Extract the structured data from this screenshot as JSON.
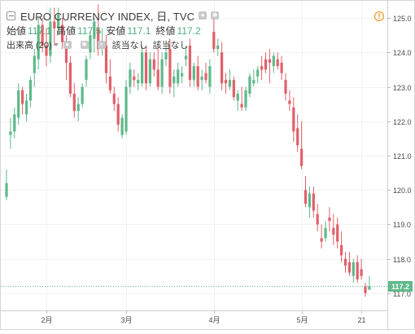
{
  "chart_data": {
    "type": "candlestick",
    "title": "EURO CURRENCY INDEX, 日, TVC",
    "ohlc_legend": [
      {
        "label": "始値",
        "value": "117.1"
      },
      {
        "label": "高値",
        "value": "117.5"
      },
      {
        "label": "安値",
        "value": "117.1"
      },
      {
        "label": "終値",
        "value": "117.2"
      }
    ],
    "volume_legend": {
      "label": "出来高 (20)",
      "values": [
        "該当なし",
        "該当なし"
      ]
    },
    "last_price_label": "117.2",
    "last_price": 117.2,
    "ylim": [
      116.5,
      125.5
    ],
    "y_ticks": [
      117,
      118,
      119,
      120,
      121,
      122,
      123,
      124,
      125
    ],
    "y_tick_labels": [
      "117.0",
      "118.0",
      "119.0",
      "120.0",
      "121.0",
      "122.0",
      "123.0",
      "124.0",
      "125.0"
    ],
    "x_ticks": [
      {
        "index": 10,
        "label": "2月"
      },
      {
        "index": 30,
        "label": "3月"
      },
      {
        "index": 52,
        "label": "4月"
      },
      {
        "index": 74,
        "label": "5月"
      },
      {
        "index": 89,
        "label": "21"
      }
    ],
    "up_color": "#5fb98a",
    "down_color": "#e0606a",
    "last_price_color": "#5fb98a",
    "candles": [
      [
        119.8,
        120.6,
        119.7,
        120.2
      ],
      [
        121.6,
        122.1,
        121.2,
        121.7
      ],
      [
        121.7,
        122.4,
        121.5,
        122.2
      ],
      [
        122.1,
        123.1,
        121.9,
        122.9
      ],
      [
        122.9,
        123.0,
        122.2,
        122.5
      ],
      [
        122.2,
        122.8,
        122.0,
        122.6
      ],
      [
        122.6,
        123.3,
        122.4,
        123.2
      ],
      [
        123.4,
        124.1,
        123.0,
        123.9
      ],
      [
        123.8,
        125.0,
        123.5,
        124.8
      ],
      [
        124.8,
        125.0,
        124.0,
        124.2
      ],
      [
        124.2,
        124.7,
        123.6,
        123.9
      ],
      [
        123.9,
        125.3,
        123.7,
        124.9
      ],
      [
        124.9,
        125.3,
        124.2,
        124.7
      ],
      [
        124.7,
        125.3,
        124.5,
        125.1
      ],
      [
        124.8,
        125.0,
        124.1,
        124.3
      ],
      [
        124.3,
        124.5,
        123.2,
        123.7
      ],
      [
        123.7,
        123.9,
        122.7,
        122.8
      ],
      [
        122.8,
        123.1,
        122.1,
        122.3
      ],
      [
        122.3,
        122.7,
        122.0,
        122.5
      ],
      [
        122.5,
        123.1,
        122.4,
        123.0
      ],
      [
        123.2,
        123.9,
        123.0,
        123.8
      ],
      [
        124.0,
        124.6,
        123.8,
        124.5
      ],
      [
        124.4,
        125.0,
        124.0,
        124.9
      ],
      [
        124.7,
        125.4,
        123.9,
        124.1
      ],
      [
        124.1,
        124.7,
        123.9,
        124.3
      ],
      [
        124.2,
        124.5,
        123.1,
        123.4
      ],
      [
        123.3,
        123.8,
        122.8,
        122.9
      ],
      [
        122.8,
        123.0,
        122.3,
        122.5
      ],
      [
        122.5,
        122.7,
        121.7,
        121.9
      ],
      [
        121.6,
        122.2,
        121.5,
        122.1
      ],
      [
        121.7,
        123.2,
        121.6,
        123.0
      ],
      [
        123.0,
        123.7,
        122.8,
        123.5
      ],
      [
        123.3,
        123.5,
        123.0,
        123.2
      ],
      [
        123.1,
        123.4,
        122.9,
        123.2
      ],
      [
        123.1,
        124.2,
        123.0,
        124.0
      ],
      [
        124.0,
        124.2,
        122.9,
        123.1
      ],
      [
        123.1,
        124.0,
        123.0,
        123.8
      ],
      [
        123.8,
        124.0,
        123.3,
        123.5
      ],
      [
        123.5,
        124.2,
        122.9,
        123.0
      ],
      [
        123.0,
        124.0,
        122.8,
        123.8
      ],
      [
        123.8,
        124.2,
        123.6,
        124.0
      ],
      [
        124.1,
        124.4,
        122.8,
        123.0
      ],
      [
        123.1,
        123.5,
        122.7,
        123.3
      ],
      [
        123.1,
        123.7,
        123.0,
        123.5
      ],
      [
        123.3,
        123.6,
        123.1,
        123.4
      ],
      [
        123.8,
        124.2,
        123.6,
        123.9
      ],
      [
        124.2,
        124.4,
        123.0,
        123.2
      ],
      [
        123.2,
        123.7,
        123.0,
        123.6
      ],
      [
        123.6,
        123.9,
        122.9,
        123.0
      ],
      [
        123.2,
        123.5,
        122.9,
        123.3
      ],
      [
        123.4,
        123.7,
        123.1,
        123.2
      ],
      [
        123.0,
        123.8,
        122.8,
        123.6
      ],
      [
        124.6,
        125.1,
        124.0,
        124.1
      ],
      [
        124.1,
        124.4,
        123.9,
        124.2
      ],
      [
        124.0,
        124.3,
        122.9,
        123.1
      ],
      [
        123.2,
        123.4,
        122.8,
        123.1
      ],
      [
        123.0,
        123.5,
        122.9,
        123.2
      ],
      [
        123.2,
        123.3,
        122.6,
        122.7
      ],
      [
        122.6,
        122.9,
        122.3,
        122.8
      ],
      [
        122.5,
        123.0,
        122.3,
        122.4
      ],
      [
        122.4,
        123.0,
        122.3,
        122.9
      ],
      [
        122.8,
        123.4,
        122.7,
        123.3
      ],
      [
        123.1,
        123.5,
        123.0,
        123.2
      ],
      [
        123.3,
        123.6,
        123.1,
        123.5
      ],
      [
        123.6,
        123.9,
        123.2,
        123.5
      ],
      [
        123.8,
        124.0,
        123.4,
        123.5
      ],
      [
        123.8,
        124.1,
        123.1,
        123.7
      ],
      [
        123.6,
        124.0,
        123.4,
        123.9
      ],
      [
        123.8,
        124.0,
        123.5,
        123.6
      ],
      [
        123.7,
        123.9,
        123.2,
        123.4
      ],
      [
        123.2,
        123.4,
        122.6,
        122.8
      ],
      [
        122.6,
        122.9,
        122.3,
        122.5
      ],
      [
        122.4,
        122.7,
        121.4,
        121.7
      ],
      [
        121.8,
        122.2,
        121.1,
        121.3
      ],
      [
        121.2,
        122.0,
        120.6,
        120.7
      ],
      [
        120.0,
        120.4,
        119.5,
        119.6
      ],
      [
        119.5,
        120.1,
        119.2,
        119.9
      ],
      [
        119.9,
        120.1,
        119.2,
        119.4
      ],
      [
        119.3,
        119.6,
        118.8,
        119.0
      ],
      [
        118.6,
        119.0,
        118.3,
        118.5
      ],
      [
        118.6,
        119.1,
        118.5,
        118.9
      ],
      [
        119.2,
        119.5,
        118.8,
        119.1
      ],
      [
        118.9,
        119.3,
        118.4,
        118.7
      ],
      [
        119.0,
        119.2,
        118.3,
        118.5
      ],
      [
        118.4,
        118.8,
        117.9,
        118.1
      ],
      [
        118.0,
        118.2,
        117.6,
        117.8
      ],
      [
        117.9,
        118.2,
        117.5,
        117.6
      ],
      [
        117.5,
        118.0,
        117.3,
        117.9
      ],
      [
        117.9,
        118.1,
        117.3,
        117.4
      ],
      [
        117.7,
        118.0,
        117.4,
        117.5
      ],
      [
        117.2,
        117.3,
        116.9,
        117.0
      ],
      [
        117.1,
        117.5,
        117.1,
        117.2
      ]
    ]
  }
}
